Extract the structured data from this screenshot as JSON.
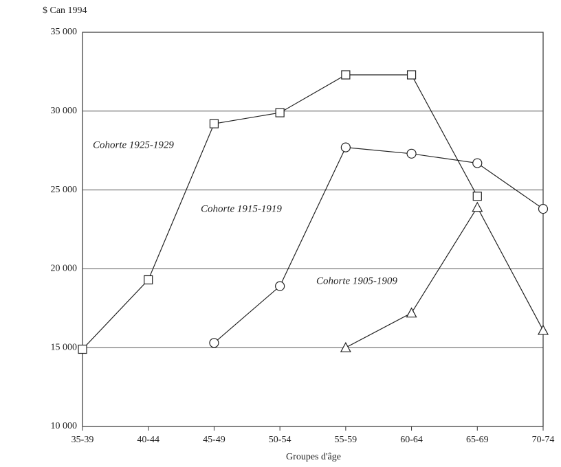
{
  "chart_data": {
    "type": "line",
    "y_unit_label": "$ Can 1994",
    "x_label": "Groupes d'âge",
    "categories": [
      "35-39",
      "40-44",
      "45-49",
      "50-54",
      "55-59",
      "60-64",
      "65-69",
      "70-74"
    ],
    "series": [
      {
        "name": "Cohorte 1925-1929",
        "color": "#222222",
        "marker": "square",
        "values": [
          14900,
          19300,
          29200,
          29900,
          32300,
          32300,
          24600,
          null
        ]
      },
      {
        "name": "Cohorte 1915-1919",
        "color": "#222222",
        "marker": "circle",
        "values": [
          null,
          null,
          15300,
          18900,
          27700,
          27300,
          26700,
          23800
        ]
      },
      {
        "name": "Cohorte 1905-1909",
        "color": "#222222",
        "marker": "triangle",
        "values": [
          null,
          null,
          null,
          null,
          15000,
          17200,
          23900,
          16100
        ]
      }
    ],
    "ylim": [
      10000,
      35000
    ],
    "yticks": [
      {
        "value": 10000,
        "label": "10 000"
      },
      {
        "value": 15000,
        "label": "15 000"
      },
      {
        "value": 20000,
        "label": "20 000"
      },
      {
        "value": 25000,
        "label": "25 000"
      },
      {
        "value": 30000,
        "label": "30 000"
      },
      {
        "value": 35000,
        "label": "35 000"
      }
    ],
    "grid": true
  }
}
